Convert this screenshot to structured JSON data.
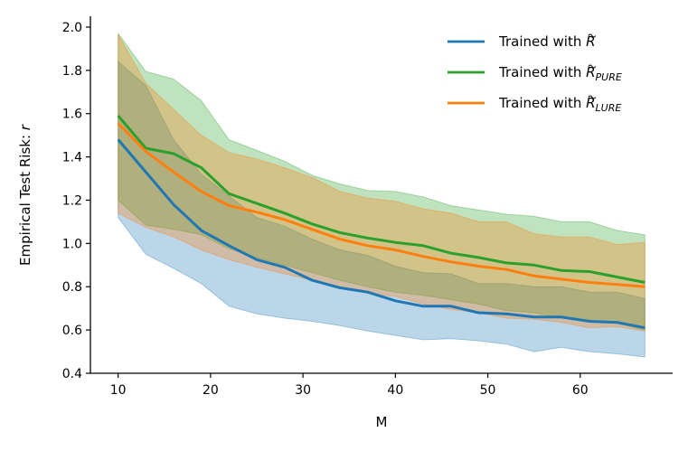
{
  "chart_data": {
    "type": "line",
    "title": "",
    "xlabel": "M",
    "ylabel_prefix": "Empirical Test Risk: ",
    "ylabel_var": "r",
    "xlim": [
      7,
      70
    ],
    "ylim": [
      0.4,
      2.05
    ],
    "xticks": [
      10,
      20,
      30,
      40,
      50,
      60
    ],
    "yticks": [
      0.4,
      0.6,
      0.8,
      1.0,
      1.2,
      1.4,
      1.6,
      1.8,
      2.0
    ],
    "ytick_labels": [
      "0.4",
      "0.6",
      "0.8",
      "1.0",
      "1.2",
      "1.4",
      "1.6",
      "1.8",
      "2.0"
    ],
    "legend_position": "top-right",
    "x": [
      10,
      13,
      16,
      19,
      22,
      25,
      28,
      31,
      34,
      37,
      40,
      43,
      46,
      49,
      52,
      55,
      58,
      61,
      64,
      67
    ],
    "series": [
      {
        "name": "Trained with R",
        "label_prefix": "Trained with ",
        "label_symbol": "R",
        "label_subscript": "",
        "color": "#1f77b4",
        "values": [
          1.48,
          1.33,
          1.18,
          1.06,
          0.99,
          0.925,
          0.89,
          0.83,
          0.795,
          0.775,
          0.735,
          0.71,
          0.71,
          0.68,
          0.675,
          0.66,
          0.66,
          0.64,
          0.635,
          0.61
        ],
        "upper": [
          1.84,
          1.73,
          1.48,
          1.32,
          1.22,
          1.12,
          1.08,
          1.02,
          0.97,
          0.945,
          0.895,
          0.865,
          0.86,
          0.815,
          0.815,
          0.8,
          0.8,
          0.775,
          0.775,
          0.745
        ],
        "lower": [
          1.12,
          0.95,
          0.885,
          0.815,
          0.71,
          0.675,
          0.655,
          0.64,
          0.62,
          0.595,
          0.575,
          0.555,
          0.56,
          0.55,
          0.535,
          0.5,
          0.52,
          0.5,
          0.49,
          0.475
        ]
      },
      {
        "name": "Trained with R_PURE",
        "label_prefix": "Trained with ",
        "label_symbol": "R",
        "label_subscript": "PURE",
        "color": "#2ca02c",
        "values": [
          1.59,
          1.44,
          1.415,
          1.35,
          1.23,
          1.185,
          1.14,
          1.09,
          1.05,
          1.025,
          1.005,
          0.99,
          0.955,
          0.935,
          0.91,
          0.9,
          0.875,
          0.87,
          0.845,
          0.82
        ],
        "upper": [
          1.97,
          1.795,
          1.76,
          1.66,
          1.48,
          1.43,
          1.38,
          1.315,
          1.275,
          1.245,
          1.24,
          1.215,
          1.175,
          1.155,
          1.135,
          1.125,
          1.1,
          1.1,
          1.06,
          1.04
        ],
        "lower": [
          1.2,
          1.085,
          1.065,
          1.04,
          0.975,
          0.935,
          0.9,
          0.865,
          0.83,
          0.8,
          0.775,
          0.76,
          0.74,
          0.72,
          0.69,
          0.68,
          0.655,
          0.645,
          0.63,
          0.6
        ]
      },
      {
        "name": "Trained with R_LURE",
        "label_prefix": "Trained with ",
        "label_symbol": "R",
        "label_subscript": "LURE",
        "color": "#ff7f0e",
        "values": [
          1.555,
          1.425,
          1.33,
          1.24,
          1.175,
          1.145,
          1.11,
          1.065,
          1.02,
          0.99,
          0.97,
          0.94,
          0.915,
          0.895,
          0.88,
          0.85,
          0.835,
          0.82,
          0.81,
          0.8
        ],
        "upper": [
          1.965,
          1.74,
          1.62,
          1.5,
          1.42,
          1.39,
          1.35,
          1.305,
          1.24,
          1.21,
          1.195,
          1.16,
          1.14,
          1.1,
          1.1,
          1.045,
          1.03,
          1.03,
          0.995,
          1.005
        ],
        "lower": [
          1.14,
          1.075,
          1.03,
          0.97,
          0.925,
          0.89,
          0.86,
          0.83,
          0.8,
          0.77,
          0.755,
          0.72,
          0.695,
          0.68,
          0.655,
          0.65,
          0.635,
          0.61,
          0.615,
          0.595
        ]
      }
    ]
  }
}
